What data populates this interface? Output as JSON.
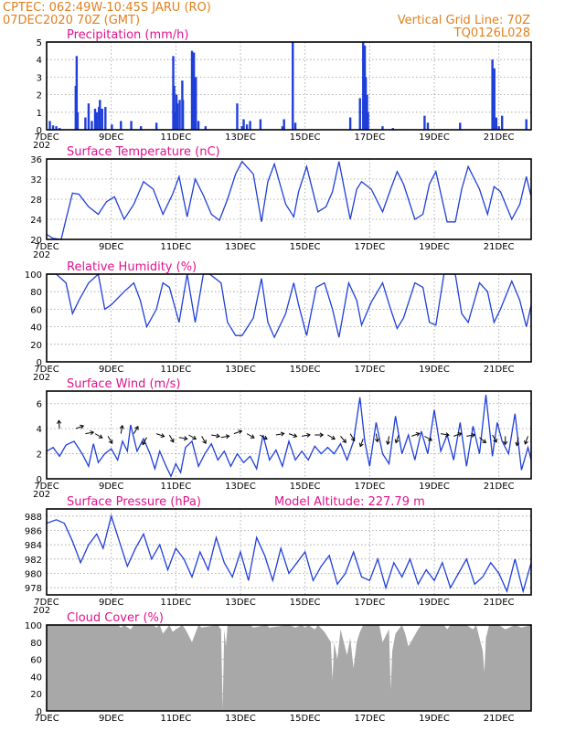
{
  "header": {
    "line1": "CPTEC:   062:49W-10:45S  JARU (RO)",
    "line2": "07DEC2020 70Z (GMT)",
    "right1": "Vertical Grid Line: 70Z",
    "right2": "TQ0126L028"
  },
  "x_axis": {
    "start_day": 7,
    "end_day": 22,
    "tick_labels": [
      "7DEC",
      "9DEC",
      "11DEC",
      "13DEC",
      "15DEC",
      "17DEC",
      "19DEC",
      "21DEC"
    ],
    "tick_days": [
      7,
      9,
      11,
      13,
      15,
      17,
      19,
      21
    ],
    "overflow_glyph": "202"
  },
  "colors": {
    "line": "#1f3fd9",
    "bar": "#1f3fd9",
    "cloud": "#a8a8a8",
    "header": "#e0801e",
    "title": "#e0138c",
    "grid": "#9a9a9a"
  },
  "chart_data": [
    {
      "id": "precip",
      "type": "bar",
      "title": "Precipitation (mm/h)",
      "ylim": [
        0,
        5
      ],
      "yticks": [
        0,
        1,
        2,
        3,
        4,
        5
      ],
      "x": [
        7.1,
        7.2,
        7.3,
        7.4,
        7.9,
        7.93,
        7.96,
        8.2,
        8.3,
        8.4,
        8.5,
        8.55,
        8.62,
        8.65,
        8.72,
        8.82,
        9.02,
        9.3,
        9.62,
        9.92,
        10.4,
        10.92,
        10.95,
        11.0,
        11.02,
        11.05,
        11.12,
        11.2,
        11.22,
        11.5,
        11.56,
        11.58,
        11.62,
        11.7,
        11.92,
        12.9,
        13.05,
        13.1,
        13.2,
        13.3,
        13.62,
        14.3,
        14.35,
        14.62,
        14.7,
        16.4,
        16.7,
        16.8,
        16.85,
        16.88,
        16.92,
        16.95,
        17.4,
        17.72,
        18.7,
        18.8,
        19.8,
        20.8,
        20.86,
        20.92,
        21.0,
        21.1,
        21.85
      ],
      "values": [
        0.5,
        0.25,
        0.2,
        0.1,
        2.5,
        4.2,
        1.0,
        0.7,
        1.5,
        0.5,
        1.2,
        1.0,
        1.3,
        1.7,
        1.2,
        1.3,
        0.3,
        0.5,
        0.5,
        0.2,
        0.4,
        4.2,
        2.5,
        1.0,
        2.0,
        1.5,
        1.7,
        2.8,
        1.7,
        4.5,
        4.4,
        2.7,
        3.0,
        0.5,
        0.2,
        1.5,
        0.2,
        0.6,
        0.3,
        0.5,
        0.6,
        0.2,
        0.6,
        5.0,
        0.4,
        0.7,
        1.8,
        5.0,
        4.8,
        3.0,
        2.0,
        1.0,
        0.2,
        0.1,
        0.8,
        0.4,
        0.4,
        4.0,
        3.5,
        0.7,
        0.2,
        0.8,
        0.6
      ]
    },
    {
      "id": "temp",
      "type": "line",
      "title": "Surface Temperature (nC)",
      "ylim": [
        20,
        36
      ],
      "yticks": [
        20,
        24,
        28,
        32,
        36
      ],
      "x": [
        7.0,
        7.2,
        7.45,
        7.6,
        7.8,
        8.0,
        8.3,
        8.6,
        8.85,
        9.1,
        9.4,
        9.7,
        10.0,
        10.3,
        10.6,
        10.9,
        11.1,
        11.35,
        11.6,
        11.85,
        12.1,
        12.35,
        12.6,
        12.85,
        13.05,
        13.4,
        13.65,
        13.85,
        14.05,
        14.4,
        14.65,
        14.8,
        15.05,
        15.4,
        15.65,
        15.85,
        16.05,
        16.4,
        16.6,
        16.75,
        17.05,
        17.4,
        17.65,
        17.85,
        18.05,
        18.4,
        18.65,
        18.85,
        19.05,
        19.4,
        19.65,
        19.85,
        20.05,
        20.4,
        20.65,
        20.85,
        21.05,
        21.4,
        21.65,
        21.85,
        22.0
      ],
      "values": [
        21.0,
        20.2,
        20.0,
        24.0,
        29.2,
        29.0,
        26.5,
        25.0,
        27.5,
        28.5,
        24.0,
        27.0,
        31.5,
        30.0,
        25.0,
        29.0,
        32.5,
        24.5,
        32.0,
        28.8,
        25.0,
        23.8,
        28.0,
        33.0,
        35.5,
        33.0,
        23.5,
        31.5,
        35.0,
        27.0,
        24.5,
        29.5,
        34.5,
        25.5,
        26.5,
        29.5,
        35.5,
        24.0,
        30.0,
        31.5,
        30.0,
        25.5,
        30.0,
        33.5,
        31.0,
        24.0,
        25.0,
        31.0,
        33.5,
        23.5,
        23.5,
        30.0,
        34.5,
        30.0,
        25.0,
        30.5,
        29.5,
        24.0,
        27.0,
        32.5,
        28.5
      ]
    },
    {
      "id": "rh",
      "type": "line",
      "title": "Relative Humidity (%)",
      "ylim": [
        0,
        100
      ],
      "yticks": [
        0,
        20,
        40,
        60,
        80,
        100
      ],
      "x": [
        7.0,
        7.3,
        7.6,
        7.8,
        8.0,
        8.3,
        8.6,
        8.8,
        9.0,
        9.4,
        9.7,
        9.9,
        10.1,
        10.4,
        10.6,
        10.8,
        11.1,
        11.35,
        11.6,
        11.85,
        12.05,
        12.4,
        12.6,
        12.85,
        13.05,
        13.4,
        13.65,
        13.85,
        14.05,
        14.4,
        14.65,
        14.8,
        15.05,
        15.35,
        15.6,
        15.85,
        16.05,
        16.35,
        16.6,
        16.75,
        17.05,
        17.4,
        17.65,
        17.85,
        18.05,
        18.4,
        18.65,
        18.85,
        19.05,
        19.3,
        19.65,
        19.85,
        20.05,
        20.4,
        20.65,
        20.85,
        21.05,
        21.4,
        21.65,
        21.85,
        22.0
      ],
      "values": [
        100,
        100,
        90,
        55,
        70,
        90,
        100,
        60,
        65,
        80,
        90,
        70,
        40,
        60,
        90,
        85,
        45,
        100,
        45,
        100,
        100,
        90,
        45,
        30,
        30,
        50,
        95,
        45,
        28,
        55,
        90,
        65,
        30,
        85,
        90,
        60,
        28,
        90,
        70,
        42,
        68,
        90,
        60,
        38,
        50,
        90,
        85,
        45,
        42,
        100,
        100,
        55,
        45,
        90,
        80,
        45,
        60,
        92,
        70,
        40,
        65
      ]
    },
    {
      "id": "wind",
      "type": "line",
      "title": "Surface Wind (m/s)",
      "ylim": [
        0,
        7
      ],
      "yticks": [
        0,
        2,
        4,
        6
      ],
      "x": [
        7.0,
        7.2,
        7.4,
        7.6,
        7.85,
        8.1,
        8.3,
        8.45,
        8.6,
        8.8,
        9.0,
        9.2,
        9.35,
        9.5,
        9.6,
        9.8,
        10.0,
        10.2,
        10.35,
        10.5,
        10.7,
        10.85,
        11.0,
        11.15,
        11.3,
        11.5,
        11.7,
        11.9,
        12.1,
        12.3,
        12.5,
        12.7,
        12.9,
        13.1,
        13.3,
        13.5,
        13.7,
        13.9,
        14.1,
        14.3,
        14.5,
        14.7,
        14.9,
        15.1,
        15.3,
        15.5,
        15.7,
        15.9,
        16.1,
        16.3,
        16.5,
        16.7,
        16.85,
        17.0,
        17.2,
        17.4,
        17.6,
        17.8,
        18.0,
        18.2,
        18.4,
        18.6,
        18.8,
        19.0,
        19.2,
        19.4,
        19.6,
        19.8,
        20.0,
        20.2,
        20.4,
        20.6,
        20.8,
        20.95,
        21.1,
        21.3,
        21.5,
        21.7,
        21.9,
        22.0
      ],
      "values": [
        2.2,
        2.5,
        1.8,
        2.7,
        3.0,
        2.0,
        1.0,
        2.8,
        1.3,
        2.0,
        2.4,
        1.5,
        3.0,
        2.2,
        4.3,
        2.2,
        3.2,
        2.0,
        0.8,
        2.2,
        1.0,
        0.2,
        1.2,
        0.5,
        2.5,
        3.0,
        1.0,
        2.0,
        2.8,
        1.5,
        2.2,
        1.0,
        2.0,
        1.3,
        1.8,
        0.8,
        3.5,
        1.5,
        2.3,
        1.0,
        3.0,
        1.5,
        2.2,
        1.5,
        2.6,
        2.0,
        2.5,
        2.0,
        2.8,
        1.5,
        3.0,
        6.5,
        3.0,
        1.0,
        4.5,
        2.0,
        1.2,
        5.0,
        2.0,
        3.5,
        1.5,
        3.8,
        2.0,
        5.5,
        2.2,
        3.5,
        1.5,
        4.5,
        1.0,
        4.2,
        2.0,
        6.7,
        1.8,
        4.5,
        3.0,
        2.0,
        5.2,
        0.7,
        2.5,
        1.5
      ],
      "arrows_x": [
        7.4,
        7.9,
        8.2,
        8.5,
        8.9,
        9.3,
        9.7,
        10.1,
        10.4,
        10.8,
        11.1,
        11.4,
        11.8,
        12.1,
        12.4,
        12.8,
        13.2,
        13.6,
        14.1,
        14.5,
        14.9,
        15.3,
        15.7,
        16.1,
        16.4,
        16.8,
        17.2,
        17.6,
        17.9,
        18.3,
        18.7,
        19.2,
        19.6,
        20.0,
        20.4,
        20.8,
        21.2,
        21.6,
        21.9
      ],
      "arrows_y": [
        4.0,
        4.0,
        3.6,
        3.6,
        3.4,
        3.6,
        3.6,
        3.3,
        3.6,
        3.5,
        3.3,
        3.5,
        3.4,
        3.5,
        3.3,
        3.6,
        3.6,
        3.5,
        3.5,
        3.6,
        3.4,
        3.5,
        3.5,
        3.4,
        3.6,
        3.2,
        3.6,
        3.4,
        3.5,
        3.4,
        3.4,
        3.6,
        3.4,
        3.4,
        3.3,
        3.5,
        3.4,
        3.3,
        3.4
      ],
      "arrows_dir_deg": [
        95,
        20,
        10,
        330,
        300,
        80,
        60,
        240,
        340,
        300,
        350,
        330,
        300,
        350,
        10,
        20,
        330,
        330,
        10,
        340,
        10,
        0,
        330,
        310,
        300,
        250,
        280,
        260,
        250,
        20,
        330,
        350,
        20,
        10,
        320,
        300,
        270,
        260,
        250
      ]
    },
    {
      "id": "pressure",
      "type": "line",
      "title": "Surface Pressure (hPa)",
      "annotation": "Model Altitude: 227.79 m",
      "ylim": [
        977,
        989
      ],
      "yticks": [
        978,
        980,
        982,
        984,
        986,
        988
      ],
      "x": [
        7.0,
        7.3,
        7.55,
        7.8,
        8.05,
        8.3,
        8.55,
        8.75,
        9.0,
        9.25,
        9.5,
        9.75,
        10.0,
        10.25,
        10.5,
        10.75,
        11.0,
        11.25,
        11.5,
        11.75,
        12.0,
        12.25,
        12.5,
        12.75,
        13.0,
        13.25,
        13.5,
        13.75,
        14.0,
        14.25,
        14.5,
        14.75,
        15.0,
        15.25,
        15.5,
        15.75,
        16.0,
        16.25,
        16.5,
        16.75,
        17.0,
        17.25,
        17.5,
        17.75,
        18.0,
        18.25,
        18.5,
        18.75,
        19.0,
        19.25,
        19.5,
        19.75,
        20.0,
        20.25,
        20.5,
        20.75,
        21.0,
        21.25,
        21.5,
        21.75,
        22.0
      ],
      "values": [
        987.0,
        987.5,
        987.0,
        984.5,
        981.5,
        984.0,
        985.5,
        983.5,
        988.0,
        984.5,
        981.0,
        983.5,
        985.5,
        982.0,
        984.0,
        980.5,
        983.5,
        982.0,
        979.5,
        983.0,
        980.5,
        985.0,
        981.5,
        979.5,
        983.0,
        979.0,
        985.0,
        982.5,
        979.0,
        983.5,
        980.0,
        981.5,
        983.0,
        979.0,
        981.0,
        982.5,
        978.5,
        980.0,
        983.0,
        979.5,
        979.0,
        982.0,
        978.0,
        981.5,
        979.5,
        982.0,
        978.5,
        980.5,
        979.0,
        981.5,
        978.0,
        980.0,
        982.0,
        978.5,
        979.5,
        981.5,
        980.0,
        977.5,
        982.0,
        977.5,
        981.5
      ]
    },
    {
      "id": "cloud",
      "type": "area",
      "title": "Cloud Cover (%)",
      "ylim": [
        0,
        100
      ],
      "yticks": [
        0,
        20,
        40,
        60,
        80,
        100
      ],
      "x": [
        7.0,
        9.2,
        9.3,
        9.4,
        9.6,
        9.7,
        10.3,
        10.4,
        10.5,
        10.6,
        10.8,
        10.9,
        11.2,
        11.3,
        11.5,
        11.7,
        11.8,
        12.3,
        12.4,
        12.45,
        12.5,
        12.55,
        12.6,
        13.3,
        13.4,
        13.8,
        13.9,
        14.5,
        14.7,
        14.9,
        15.0,
        15.1,
        15.3,
        15.4,
        15.6,
        15.8,
        15.85,
        15.9,
        16.0,
        16.1,
        16.3,
        16.4,
        16.5,
        16.6,
        16.7,
        16.8,
        17.3,
        17.4,
        17.6,
        17.65,
        17.7,
        17.8,
        18.0,
        18.1,
        18.2,
        18.5,
        18.6,
        19.3,
        19.4,
        19.5,
        20.0,
        20.2,
        20.3,
        20.5,
        20.55,
        20.6,
        20.7,
        21.0,
        21.2,
        21.5,
        21.7,
        22.0
      ],
      "values": [
        100,
        100,
        97,
        100,
        95,
        100,
        100,
        97,
        100,
        90,
        100,
        92,
        100,
        95,
        80,
        100,
        97,
        100,
        95,
        2,
        95,
        75,
        100,
        100,
        97,
        100,
        97,
        100,
        97,
        100,
        97,
        100,
        95,
        100,
        92,
        80,
        35,
        80,
        60,
        95,
        65,
        85,
        50,
        80,
        92,
        100,
        100,
        80,
        95,
        25,
        70,
        90,
        100,
        90,
        75,
        95,
        100,
        100,
        95,
        100,
        100,
        95,
        100,
        70,
        45,
        85,
        100,
        100,
        95,
        100,
        97,
        100
      ]
    }
  ]
}
